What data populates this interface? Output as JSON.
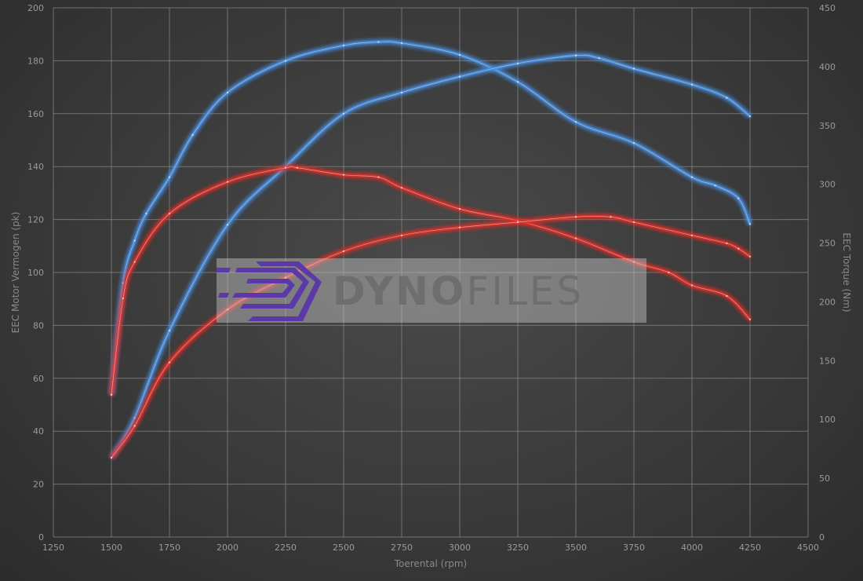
{
  "chart_data": {
    "type": "line",
    "xlabel": "Toerental (rpm)",
    "ylabel_left": "EEC Motor Vermogen (pk)",
    "ylabel_right": "EEC Torque (Nm)",
    "xlim": [
      1250,
      4500
    ],
    "ylim_left": [
      0,
      200
    ],
    "ylim_right": [
      0,
      450
    ],
    "x_ticks": [
      1250,
      1500,
      1750,
      2000,
      2250,
      2500,
      2750,
      3000,
      3250,
      3500,
      3750,
      4000,
      4250,
      4500
    ],
    "y_ticks_left": [
      0,
      20,
      40,
      60,
      80,
      100,
      120,
      140,
      160,
      180,
      200
    ],
    "y_ticks_right": [
      0,
      50,
      100,
      150,
      200,
      250,
      300,
      350,
      400,
      450
    ],
    "grid": true,
    "series": [
      {
        "axis": "right",
        "color": "#4a90e2",
        "x": [
          1500,
          1550,
          1600,
          1650,
          1750,
          1850,
          2000,
          2250,
          2500,
          2650,
          2750,
          3000,
          3250,
          3500,
          3750,
          4000,
          4100,
          4200,
          4250
        ],
        "values": [
          121,
          216,
          252,
          275,
          306,
          342,
          378,
          405,
          418,
          421,
          420,
          410,
          387,
          353,
          335,
          306,
          299,
          288,
          266
        ]
      },
      {
        "axis": "left",
        "color": "#4a90e2",
        "x": [
          1500,
          1600,
          1750,
          2000,
          2250,
          2500,
          2750,
          3000,
          3250,
          3500,
          3600,
          3750,
          4000,
          4150,
          4250
        ],
        "values": [
          30,
          45,
          78,
          118,
          140,
          160,
          168,
          174,
          179,
          182,
          181,
          177,
          171,
          166,
          159
        ]
      },
      {
        "axis": "right",
        "color": "#e0302a",
        "x": [
          1500,
          1550,
          1600,
          1750,
          2000,
          2250,
          2300,
          2500,
          2650,
          2750,
          3000,
          3250,
          3500,
          3750,
          3900,
          4000,
          4150,
          4250
        ],
        "values": [
          121,
          203,
          234,
          275,
          302,
          314,
          314,
          308,
          306,
          297,
          279,
          269,
          254,
          234,
          225,
          214,
          205,
          185
        ]
      },
      {
        "axis": "left",
        "color": "#e0302a",
        "x": [
          1500,
          1600,
          1750,
          2000,
          2250,
          2500,
          2750,
          3000,
          3250,
          3500,
          3650,
          3750,
          4000,
          4150,
          4200,
          4250
        ],
        "values": [
          30,
          42,
          66,
          86,
          98,
          108,
          114,
          117,
          119,
          121,
          121,
          119,
          114,
          111,
          109,
          106
        ]
      }
    ]
  },
  "watermark": {
    "bold": "DYNO",
    "light": "FILES",
    "logo_color": "#5b3aa8"
  }
}
